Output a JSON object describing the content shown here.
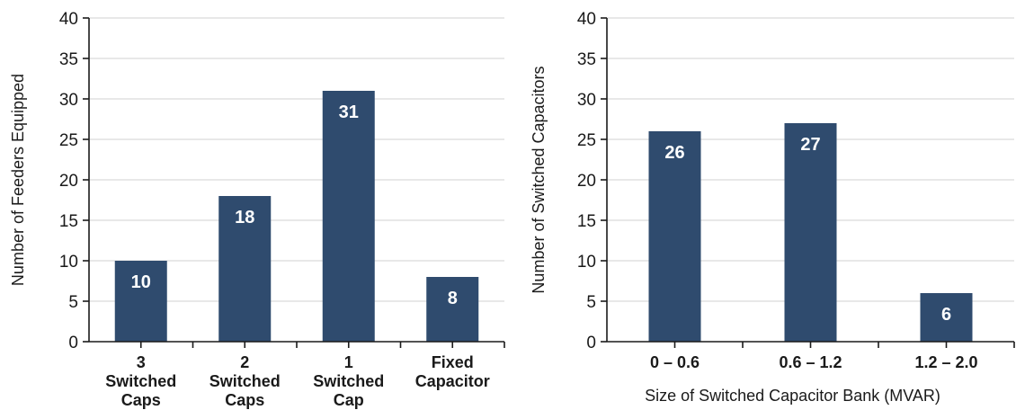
{
  "colors": {
    "bar": "#2f4b6e",
    "grid": "#d2d2d2",
    "axis": "#1a1a1a",
    "label": "#ffffff"
  },
  "chart_data": [
    {
      "type": "bar",
      "title": "",
      "xlabel": "",
      "ylabel": "Number of Feeders Equipped",
      "ylim": [
        0,
        40
      ],
      "yticks": [
        0,
        5,
        10,
        15,
        20,
        25,
        30,
        35,
        40
      ],
      "grid": true,
      "categories": [
        [
          "3",
          "Switched",
          "Caps"
        ],
        [
          "2",
          "Switched",
          "Caps"
        ],
        [
          "1",
          "Switched",
          "Cap"
        ],
        [
          "Fixed",
          "Capacitor"
        ]
      ],
      "values": [
        10,
        18,
        31,
        8
      ],
      "data_labels": [
        "10",
        "18",
        "31",
        "8"
      ]
    },
    {
      "type": "bar",
      "title": "",
      "xlabel": "Size of Switched Capacitor Bank (MVAR)",
      "ylabel": "Number of Switched Capacitors",
      "ylim": [
        0,
        40
      ],
      "yticks": [
        0,
        5,
        10,
        15,
        20,
        25,
        30,
        35,
        40
      ],
      "grid": true,
      "categories": [
        [
          "0 – 0.6"
        ],
        [
          "0.6 – 1.2"
        ],
        [
          "1.2 – 2.0"
        ]
      ],
      "values": [
        26,
        27,
        6
      ],
      "data_labels": [
        "26",
        "27",
        "6"
      ]
    }
  ]
}
